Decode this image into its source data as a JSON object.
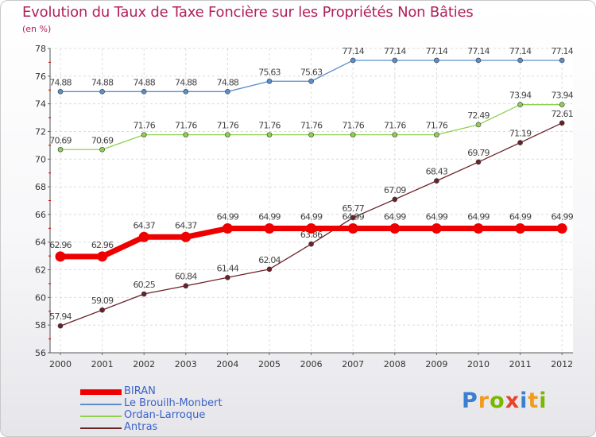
{
  "title": "Evolution du Taux de Taxe Foncière sur les Propriétés Non Bâties",
  "unit_label": "(en %)",
  "chart_data": {
    "type": "line",
    "title": "Evolution du Taux de Taxe Foncière sur les Propriétés Non Bâties",
    "ylabel": "(en %)",
    "xlabel": "",
    "ylim": [
      56,
      78
    ],
    "y_ticks": [
      "56",
      "58",
      "60",
      "62",
      "64",
      "66",
      "68",
      "70",
      "72",
      "74",
      "76",
      "78"
    ],
    "categories": [
      "2000",
      "2001",
      "2002",
      "2003",
      "2004",
      "2005",
      "2006",
      "2007",
      "2008",
      "2009",
      "2010",
      "2011",
      "2012"
    ],
    "grid": true,
    "series": [
      {
        "name": "Le Brouilh-Monbert",
        "color": "#5b8fc9",
        "values": [
          74.88,
          74.88,
          74.88,
          74.88,
          74.88,
          75.63,
          75.63,
          77.14,
          77.14,
          77.14,
          77.14,
          77.14,
          77.14
        ],
        "labels": [
          "74.88",
          "74.88",
          "74.88",
          "74.88",
          "74.88",
          "75.63",
          "75.63",
          "77.14",
          "77.14",
          "77.14",
          "77.14",
          "77.14",
          "77.14"
        ]
      },
      {
        "name": "Ordan-Larroque",
        "color": "#8fd14f",
        "values": [
          70.69,
          70.69,
          71.76,
          71.76,
          71.76,
          71.76,
          71.76,
          71.76,
          71.76,
          71.76,
          72.49,
          73.94,
          73.94
        ],
        "labels": [
          "70.69",
          "70.69",
          "71.76",
          "71.76",
          "71.76",
          "71.76",
          "71.76",
          "71.76",
          "71.76",
          "71.76",
          "72.49",
          "73.94",
          "73.94"
        ]
      },
      {
        "name": "Antras",
        "color": "#6b2128",
        "values": [
          57.94,
          59.09,
          60.25,
          60.84,
          61.44,
          62.04,
          63.86,
          65.77,
          67.09,
          68.43,
          69.79,
          71.19,
          72.61
        ],
        "labels": [
          "57.94",
          "59.09",
          "60.25",
          "60.84",
          "61.44",
          "62.04",
          "63.86",
          "65.77",
          "67.09",
          "68.43",
          "69.79",
          "71.19",
          "72.61"
        ]
      },
      {
        "name": "BIRAN",
        "color": "#ee0000",
        "values": [
          62.96,
          62.96,
          64.37,
          64.37,
          64.99,
          64.99,
          64.99,
          64.99,
          64.99,
          64.99,
          64.99,
          64.99,
          64.99
        ],
        "labels": [
          "62.96",
          "62.96",
          "64.37",
          "64.37",
          "64.99",
          "64.99",
          "64.99",
          "64.99",
          "64.99",
          "64.99",
          "64.99",
          "64.99",
          "64.99"
        ]
      }
    ],
    "legend": [
      "BIRAN",
      "Le Brouilh-Monbert",
      "Ordan-Larroque",
      "Antras"
    ]
  },
  "logo_text": "Proxiti"
}
